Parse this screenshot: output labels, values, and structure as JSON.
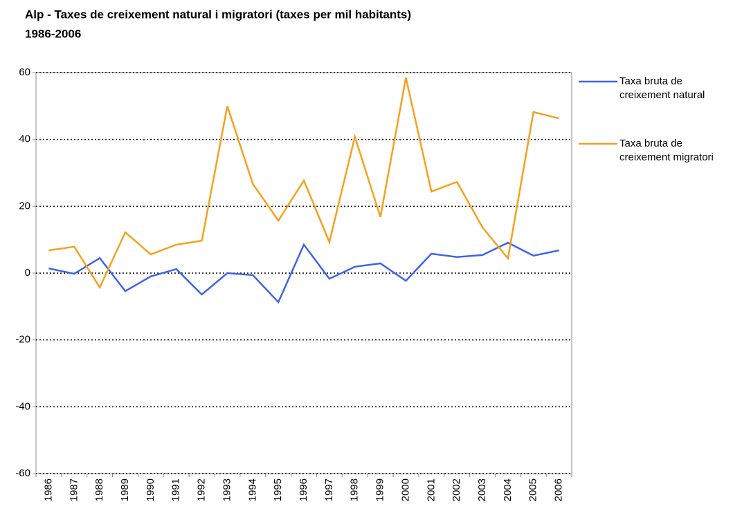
{
  "chart_data": {
    "type": "line",
    "title": "Alp - Taxes de creixement natural i migratori (taxes per mil habitants)",
    "subtitle": "1986-2006",
    "categories": [
      "1986",
      "1987",
      "1988",
      "1989",
      "1990",
      "1991",
      "1992",
      "1993",
      "1994",
      "1995",
      "1996",
      "1997",
      "1998",
      "1999",
      "2000",
      "2001",
      "2002",
      "2003",
      "2004",
      "2005",
      "2006"
    ],
    "series": [
      {
        "name": "Taxa bruta de creixement natural",
        "color": "#3c64e8",
        "values": [
          1.4,
          -0.2,
          4.5,
          -5.4,
          -1,
          1.2,
          -6.4,
          0,
          -0.6,
          -8.7,
          8.5,
          -1.7,
          1.9,
          2.9,
          -2.3,
          5.8,
          4.8,
          5.4,
          9.1,
          5.2,
          6.8
        ]
      },
      {
        "name": "Taxa bruta de creixement migratori",
        "color": "#f5a11c",
        "values": [
          6.8,
          7.9,
          -4.3,
          12.2,
          5.6,
          8.5,
          9.7,
          50,
          26.7,
          15.7,
          27.7,
          9.3,
          40.8,
          16.8,
          58.5,
          24.4,
          27.3,
          13.7,
          4.4,
          48.2,
          46.3
        ]
      }
    ],
    "ylim": [
      -60,
      60
    ],
    "yticks": [
      -60,
      -40,
      -20,
      0,
      20,
      40,
      60
    ],
    "grid": true,
    "legend": "right"
  }
}
